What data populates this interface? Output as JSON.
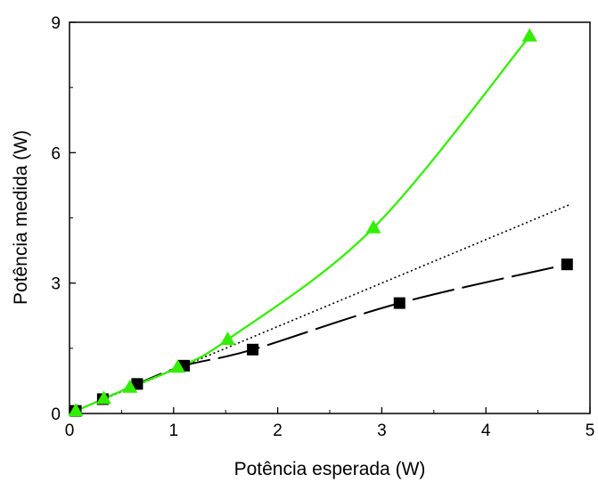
{
  "chart_data": {
    "type": "line",
    "title": "",
    "xlabel": "Potência esperada (W)",
    "ylabel": "Potência medida (W)",
    "xlim": [
      0,
      5
    ],
    "ylim": [
      0,
      9
    ],
    "x_ticks": [
      "0",
      "1",
      "2",
      "3",
      "4",
      "5"
    ],
    "y_ticks": [
      "0",
      "3",
      "6",
      "9"
    ],
    "x_tick_values": [
      0,
      1,
      2,
      3,
      4,
      5
    ],
    "y_tick_values": [
      0,
      3,
      6,
      9
    ],
    "grid": false,
    "legend": "none",
    "series": [
      {
        "marker": "square",
        "color": "#000000",
        "line_style": "long-dash",
        "x": [
          0.06,
          0.32,
          0.65,
          1.1,
          1.76,
          3.17,
          4.78
        ],
        "y": [
          0.06,
          0.33,
          0.68,
          1.1,
          1.47,
          2.54,
          3.43
        ]
      },
      {
        "marker": "triangle",
        "color": "#33ee00",
        "line_style": "solid",
        "x": [
          0.06,
          0.33,
          0.58,
          1.04,
          1.52,
          2.92,
          4.42
        ],
        "y": [
          0.06,
          0.34,
          0.6,
          1.06,
          1.7,
          4.27,
          8.68
        ]
      },
      {
        "marker": "none",
        "color": "#000000",
        "line_style": "dotted",
        "x": [
          0,
          4.8
        ],
        "y": [
          0,
          4.8
        ]
      }
    ]
  }
}
